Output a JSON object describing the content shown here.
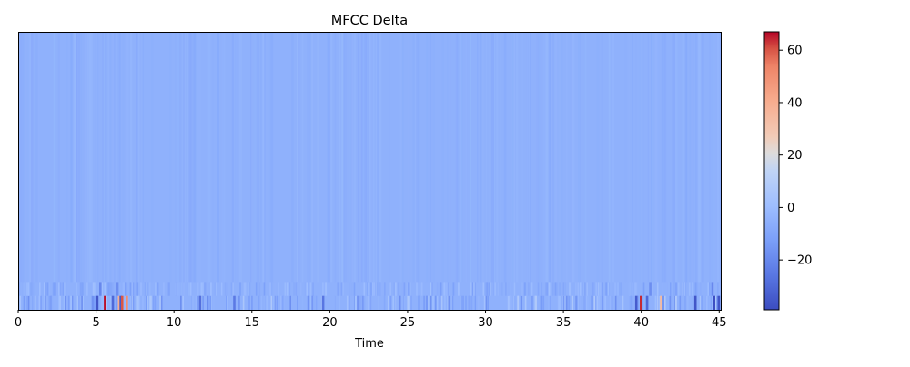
{
  "chart_data": {
    "type": "heatmap",
    "title": "MFCC Delta",
    "xlabel": "Time",
    "ylabel": "",
    "xlim": [
      0,
      45.1
    ],
    "x_ticks": [
      0,
      5,
      10,
      15,
      20,
      25,
      30,
      35,
      40,
      45
    ],
    "y_ticks": [],
    "n_coefficients": 20,
    "colormap": "coolwarm",
    "colorbar": {
      "range": [
        -39,
        67
      ],
      "ticks": [
        60,
        40,
        20,
        0,
        -20
      ],
      "tick_labels": [
        "60",
        "40",
        "20",
        "0",
        "−20"
      ]
    },
    "typical_value": -5,
    "events": [
      {
        "row": 0,
        "t": 5.0,
        "value": -36
      },
      {
        "row": 0,
        "t": 5.5,
        "value": 66
      },
      {
        "row": 0,
        "t": 6.0,
        "value": -30
      },
      {
        "row": 0,
        "t": 6.4,
        "value": 40
      },
      {
        "row": 0,
        "t": 6.5,
        "value": -35
      },
      {
        "row": 0,
        "t": 6.6,
        "value": 60
      },
      {
        "row": 0,
        "t": 6.9,
        "value": 50
      },
      {
        "row": 0,
        "t": 11.6,
        "value": -28
      },
      {
        "row": 0,
        "t": 13.8,
        "value": -25
      },
      {
        "row": 0,
        "t": 19.5,
        "value": -26
      },
      {
        "row": 0,
        "t": 39.6,
        "value": -34
      },
      {
        "row": 0,
        "t": 39.9,
        "value": 64
      },
      {
        "row": 0,
        "t": 40.3,
        "value": -30
      },
      {
        "row": 0,
        "t": 41.2,
        "value": 35
      },
      {
        "row": 0,
        "t": 43.4,
        "value": -36
      },
      {
        "row": 0,
        "t": 44.6,
        "value": -38
      },
      {
        "row": 0,
        "t": 44.9,
        "value": -36
      },
      {
        "row": 1,
        "t": 5.2,
        "value": -20
      },
      {
        "row": 1,
        "t": 6.3,
        "value": -18
      },
      {
        "row": 1,
        "t": 40.5,
        "value": -18
      },
      {
        "row": 1,
        "t": 44.5,
        "value": -20
      }
    ]
  }
}
